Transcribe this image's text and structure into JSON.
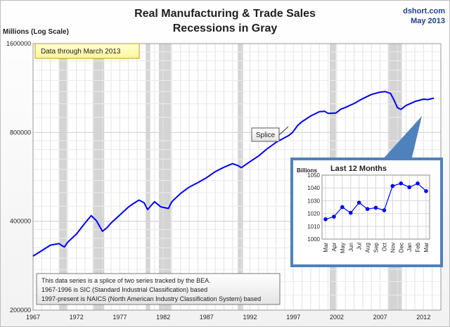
{
  "chart_data": [
    {
      "type": "line",
      "title": "Real Manufacturing & Trade Sales",
      "subtitle": "Recessions in Gray",
      "source": "dshort.com",
      "date": "May 2013",
      "ylabel": "Millions (Log Scale)",
      "y_scale": "log",
      "ylim": [
        200000,
        1600000
      ],
      "y_ticks": [
        "1600000",
        "800000",
        "400000",
        "200000"
      ],
      "y_tick_values": [
        1600000,
        800000,
        400000,
        200000
      ],
      "xlim": [
        1967,
        2014
      ],
      "x_ticks": [
        "1967",
        "1972",
        "1977",
        "1982",
        "1987",
        "1992",
        "1997",
        "2002",
        "2007",
        "2012"
      ],
      "x_tick_values": [
        1967,
        1972,
        1977,
        1982,
        1987,
        1992,
        1997,
        2002,
        2007,
        2012
      ],
      "grid": true,
      "line_color": "#0000ff",
      "recession_color": "#d4d4d4",
      "recessions": [
        [
          1970.0,
          1970.9
        ],
        [
          1973.9,
          1975.2
        ],
        [
          1980.0,
          1980.5
        ],
        [
          1981.5,
          1982.9
        ],
        [
          1990.6,
          1991.2
        ],
        [
          2001.2,
          2001.9
        ],
        [
          2007.9,
          2009.5
        ]
      ],
      "series": [
        {
          "x": [
            1967.0,
            1968.0,
            1969.0,
            1970.0,
            1970.6,
            1971.0,
            1972.0,
            1973.0,
            1973.7,
            1974.3,
            1975.0,
            1975.5,
            1976.0,
            1977.0,
            1978.0,
            1978.5,
            1979.2,
            1979.8,
            1980.2,
            1980.6,
            1981.0,
            1981.7,
            1982.6,
            1983.0,
            1984.0,
            1985.0,
            1986.0,
            1987.0,
            1988.0,
            1989.0,
            1990.0,
            1990.6,
            1991.0,
            1992.0,
            1993.0,
            1994.0,
            1995.0,
            1996.0,
            1996.5,
            1996.9,
            1997.5,
            1998.0,
            1999.0,
            2000.0,
            2000.6,
            2001.0,
            2001.9,
            2002.5,
            2003.0,
            2004.0,
            2005.0,
            2006.0,
            2007.0,
            2007.6,
            2008.2,
            2008.6,
            2009.0,
            2009.4,
            2010.0,
            2011.0,
            2012.0,
            2012.5,
            2013.0,
            2013.2
          ],
          "values": [
            305000,
            318000,
            332000,
            336000,
            327000,
            340000,
            362000,
            395000,
            418000,
            402000,
            370000,
            380000,
            395000,
            420000,
            447000,
            458000,
            472000,
            462000,
            438000,
            452000,
            466000,
            448000,
            442000,
            466000,
            497000,
            522000,
            541000,
            562000,
            589000,
            610000,
            627000,
            618000,
            608000,
            637000,
            666000,
            705000,
            740000,
            768000,
            782000,
            800000,
            845000,
            870000,
            910000,
            940000,
            944000,
            928000,
            931000,
            960000,
            972000,
            1003000,
            1041000,
            1076000,
            1096000,
            1100000,
            1085000,
            1030000,
            970000,
            958000,
            988000,
            1018000,
            1037000,
            1034000,
            1043000,
            1045000
          ]
        }
      ],
      "annotations": {
        "data_through": "Data through March 2013",
        "splice": "Splice",
        "note_lines": [
          "This data series is a splice of two series tracked by the BEA.",
          "1967-1996  is SIC (Standard Industrial Classification) based",
          "1997-present is NAICS  (North American Industry Classification System) based"
        ]
      }
    },
    {
      "type": "line",
      "title": "Last 12 Months",
      "ylabel": "Billions",
      "ylim": [
        1000,
        1050
      ],
      "y_ticks": [
        "1050",
        "1040",
        "1030",
        "1020",
        "1010",
        "1000"
      ],
      "y_tick_values": [
        1050,
        1040,
        1030,
        1020,
        1010,
        1000
      ],
      "categories": [
        "Mar",
        "Apr",
        "May",
        "Jun",
        "Jul",
        "Aug",
        "Sep",
        "Oct",
        "Nov",
        "Dec",
        "Jan",
        "Feb",
        "Mar"
      ],
      "grid": true,
      "series": [
        {
          "values": [
            1015.5,
            1017.5,
            1025,
            1020.5,
            1028.5,
            1023.5,
            1024.5,
            1022.5,
            1041.5,
            1043.5,
            1040.5,
            1043.5,
            1037.5
          ]
        }
      ]
    }
  ]
}
